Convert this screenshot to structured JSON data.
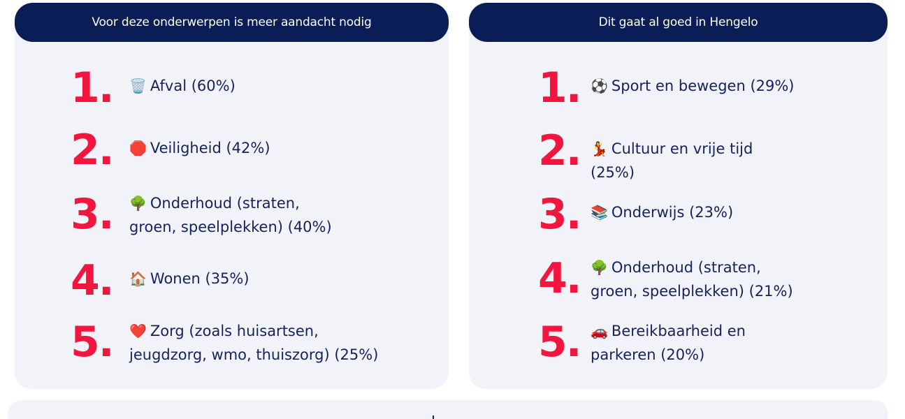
{
  "left_panel": {
    "header": "Voor deze onderwerpen is meer aandacht nodig",
    "items": [
      {
        "number": "1.",
        "emoji": "🗑️",
        "line1": "Afval (60%)",
        "line2": ""
      },
      {
        "number": "2.",
        "emoji": "🛑",
        "line1": "Veiligheid (42%)",
        "line2": ""
      },
      {
        "number": "3.",
        "emoji": "🌳",
        "line1": "Onderhoud (straten,",
        "line2": "groen, speelplekken) (40%)"
      },
      {
        "number": "4.",
        "emoji": "🏠",
        "line1": "Wonen (35%)",
        "line2": ""
      },
      {
        "number": "5.",
        "emoji": "❤️",
        "line1": "Zorg (zoals huisartsen,",
        "line2": "jeugdzorg, wmo, thuiszorg) (25%)"
      }
    ]
  },
  "right_panel": {
    "header": "Dit gaat al goed in Hengelo",
    "items": [
      {
        "number": "1.",
        "emoji": "⚽",
        "line1": "Sport en bewegen (29%)",
        "line2": ""
      },
      {
        "number": "2.",
        "emoji": "💃",
        "line1": "Cultuur en vrije tijd",
        "line2": "(25%)"
      },
      {
        "number": "3.",
        "emoji": "📚",
        "line1": "Onderwijs (23%)",
        "line2": ""
      },
      {
        "number": "4.",
        "emoji": "🌳",
        "line1": "Onderhoud (straten,",
        "line2": "groen, speelplekken) (21%)"
      },
      {
        "number": "5.",
        "emoji": "🚗",
        "line1": "Bereikbaarheid en",
        "line2": "parkeren (20%)"
      }
    ]
  },
  "colors": {
    "header_bg": "#0a1d56",
    "panel_bg": "#f1f3f9",
    "number_red": "#f2163e",
    "text_navy": "#13235b"
  }
}
